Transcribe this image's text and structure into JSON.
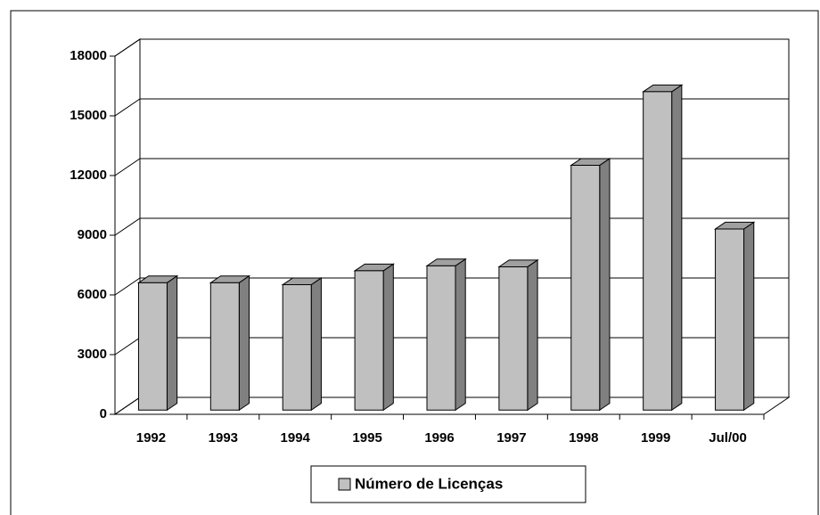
{
  "chart_data": {
    "type": "bar3d",
    "categories": [
      "1992",
      "1993",
      "1994",
      "1995",
      "1996",
      "1997",
      "1998",
      "1999",
      "Jul/00"
    ],
    "series": [
      {
        "name": "Número de Licenças",
        "color": "#c0c0c0",
        "values": [
          6400,
          6400,
          6300,
          7000,
          7250,
          7200,
          12300,
          16000,
          9100
        ]
      }
    ],
    "ylim": [
      0,
      18000
    ],
    "yticks": [
      0,
      3000,
      6000,
      9000,
      12000,
      15000,
      18000
    ],
    "grid": true,
    "legend": "bottom"
  }
}
